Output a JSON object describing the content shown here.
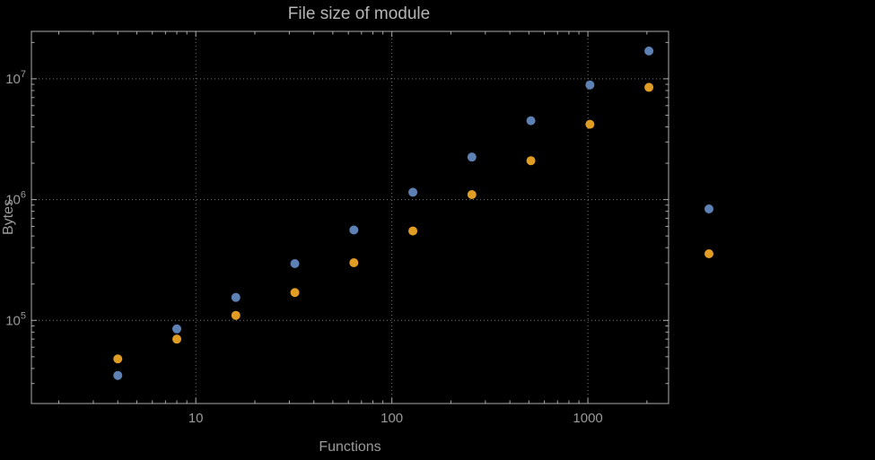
{
  "background_color": "#000000",
  "styles": {
    "frame_color": "#ababab",
    "grid_color": "#767676",
    "tick_color": "#ababab",
    "label_color": "#9a9a9a",
    "title_color": "#b5b5b5",
    "series_blue": "#5e81b5",
    "series_orange": "#e19c24"
  },
  "chart_data": {
    "type": "scatter",
    "title": "File size of module",
    "xlabel": "Functions",
    "ylabel": "Bytes",
    "x_scale": "log",
    "y_scale": "log",
    "xlim": [
      1.45,
      2580
    ],
    "ylim": [
      20500,
      24700000
    ],
    "grid": "dotted gridlines at decade ticks, frame on all four sides with log minor ticks",
    "legend_position": "right of frame, marker dots only (labels not visible)",
    "x": [
      4,
      8,
      16,
      32,
      64,
      128,
      256,
      512,
      1024,
      2048
    ],
    "series": [
      {
        "name": "blue",
        "color": "#5e81b5",
        "values": [
          35000,
          85000,
          155000,
          295000,
          560000,
          1150000,
          2250000,
          4500000,
          8900000,
          17000000
        ]
      },
      {
        "name": "orange",
        "color": "#e19c24",
        "values": [
          48000,
          70000,
          110000,
          170000,
          300000,
          550000,
          1100000,
          2100000,
          4200000,
          8500000
        ]
      }
    ],
    "x_ticks": [
      {
        "value": 10,
        "label": "10"
      },
      {
        "value": 100,
        "label": "100"
      },
      {
        "value": 1000,
        "label": "1000"
      }
    ],
    "y_ticks": [
      {
        "value": 100000,
        "base": "10",
        "exp": "5"
      },
      {
        "value": 1000000,
        "base": "10",
        "exp": "6"
      },
      {
        "value": 10000000,
        "base": "10",
        "exp": "7"
      }
    ],
    "legend": {
      "markers": [
        {
          "name": "blue",
          "color": "#5e81b5"
        },
        {
          "name": "orange",
          "color": "#e19c24"
        }
      ],
      "labels_visible": false
    }
  }
}
